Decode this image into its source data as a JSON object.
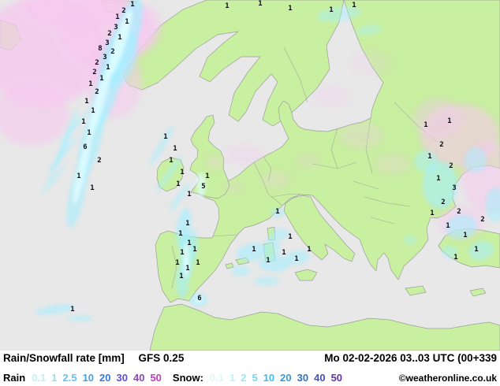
{
  "map": {
    "colors": {
      "sea": "#e8e8e8",
      "land": "#c9efa1",
      "coast": "#999f99",
      "snow": "#a5efff",
      "snow_bright": "#dffdff",
      "rain": "#f6c8ef",
      "value_text": "#0a0a14"
    },
    "values": [
      [
        168,
        6,
        "1"
      ],
      [
        157,
        14,
        "2"
      ],
      [
        149,
        22,
        "1"
      ],
      [
        161,
        28,
        "1"
      ],
      [
        147,
        35,
        "3"
      ],
      [
        139,
        43,
        "2"
      ],
      [
        152,
        48,
        "1"
      ],
      [
        136,
        55,
        "3"
      ],
      [
        127,
        62,
        "8"
      ],
      [
        143,
        66,
        "2"
      ],
      [
        133,
        73,
        "3"
      ],
      [
        123,
        80,
        "2"
      ],
      [
        137,
        86,
        "1"
      ],
      [
        120,
        92,
        "2"
      ],
      [
        129,
        100,
        "1"
      ],
      [
        115,
        107,
        "1"
      ],
      [
        123,
        117,
        "2"
      ],
      [
        110,
        129,
        "1"
      ],
      [
        118,
        141,
        "1"
      ],
      [
        106,
        155,
        "1"
      ],
      [
        113,
        169,
        "1"
      ],
      [
        108,
        187,
        "6"
      ],
      [
        126,
        204,
        "2"
      ],
      [
        100,
        224,
        "1"
      ],
      [
        117,
        239,
        "1"
      ],
      [
        288,
        8,
        "1"
      ],
      [
        330,
        5,
        "1"
      ],
      [
        368,
        11,
        "1"
      ],
      [
        420,
        13,
        "1"
      ],
      [
        449,
        7,
        "1"
      ],
      [
        210,
        174,
        "1"
      ],
      [
        222,
        189,
        "1"
      ],
      [
        217,
        204,
        "1"
      ],
      [
        231,
        219,
        "1"
      ],
      [
        226,
        234,
        "1"
      ],
      [
        240,
        247,
        "1"
      ],
      [
        258,
        237,
        "5"
      ],
      [
        263,
        224,
        "1"
      ],
      [
        238,
        284,
        "1"
      ],
      [
        229,
        297,
        "1"
      ],
      [
        240,
        309,
        "1"
      ],
      [
        231,
        321,
        "1"
      ],
      [
        225,
        334,
        "1"
      ],
      [
        238,
        341,
        "1"
      ],
      [
        230,
        351,
        "1"
      ],
      [
        247,
        317,
        "1"
      ],
      [
        251,
        334,
        "1"
      ],
      [
        253,
        379,
        "6"
      ],
      [
        322,
        317,
        "1"
      ],
      [
        340,
        331,
        "1"
      ],
      [
        360,
        321,
        "1"
      ],
      [
        376,
        329,
        "1"
      ],
      [
        392,
        317,
        "1"
      ],
      [
        352,
        269,
        "1"
      ],
      [
        368,
        301,
        "1"
      ],
      [
        92,
        393,
        "1"
      ],
      [
        540,
        159,
        "1"
      ],
      [
        570,
        154,
        "1"
      ],
      [
        560,
        184,
        "2"
      ],
      [
        545,
        199,
        "1"
      ],
      [
        572,
        211,
        "2"
      ],
      [
        556,
        227,
        "1"
      ],
      [
        576,
        239,
        "3"
      ],
      [
        562,
        257,
        "2"
      ],
      [
        548,
        271,
        "1"
      ],
      [
        582,
        269,
        "2"
      ],
      [
        568,
        287,
        "1"
      ],
      [
        590,
        299,
        "1"
      ],
      [
        604,
        317,
        "1"
      ],
      [
        578,
        327,
        "1"
      ],
      [
        612,
        279,
        "2"
      ]
    ]
  },
  "footer": {
    "title": "Rain/Snowfall rate [mm]",
    "model": "GFS 0.25",
    "datetime": "Mo 02-02-2026 03..03 UTC (00+339",
    "rain_label": "Rain",
    "snow_label": "Snow:",
    "rain_legend": [
      {
        "value": "0.1",
        "color": "#c6eef2"
      },
      {
        "value": "1",
        "color": "#96dcf2"
      },
      {
        "value": "2.5",
        "color": "#68c2ee"
      },
      {
        "value": "10",
        "color": "#46a0e6"
      },
      {
        "value": "20",
        "color": "#3c78dc"
      },
      {
        "value": "30",
        "color": "#5a50d2"
      },
      {
        "value": "40",
        "color": "#8c46c8"
      },
      {
        "value": "50",
        "color": "#c03cbe"
      }
    ],
    "snow_legend": [
      {
        "value": "0.1",
        "color": "#daf8fa"
      },
      {
        "value": "1",
        "color": "#bcf2f8"
      },
      {
        "value": "2",
        "color": "#9ce8f6"
      },
      {
        "value": "5",
        "color": "#72d6f0"
      },
      {
        "value": "10",
        "color": "#48bce8"
      },
      {
        "value": "20",
        "color": "#329ad8"
      },
      {
        "value": "30",
        "color": "#2e74c4"
      },
      {
        "value": "40",
        "color": "#4452b4"
      },
      {
        "value": "50",
        "color": "#6236a2"
      }
    ],
    "copyright": "©weatheronline.co.uk"
  }
}
